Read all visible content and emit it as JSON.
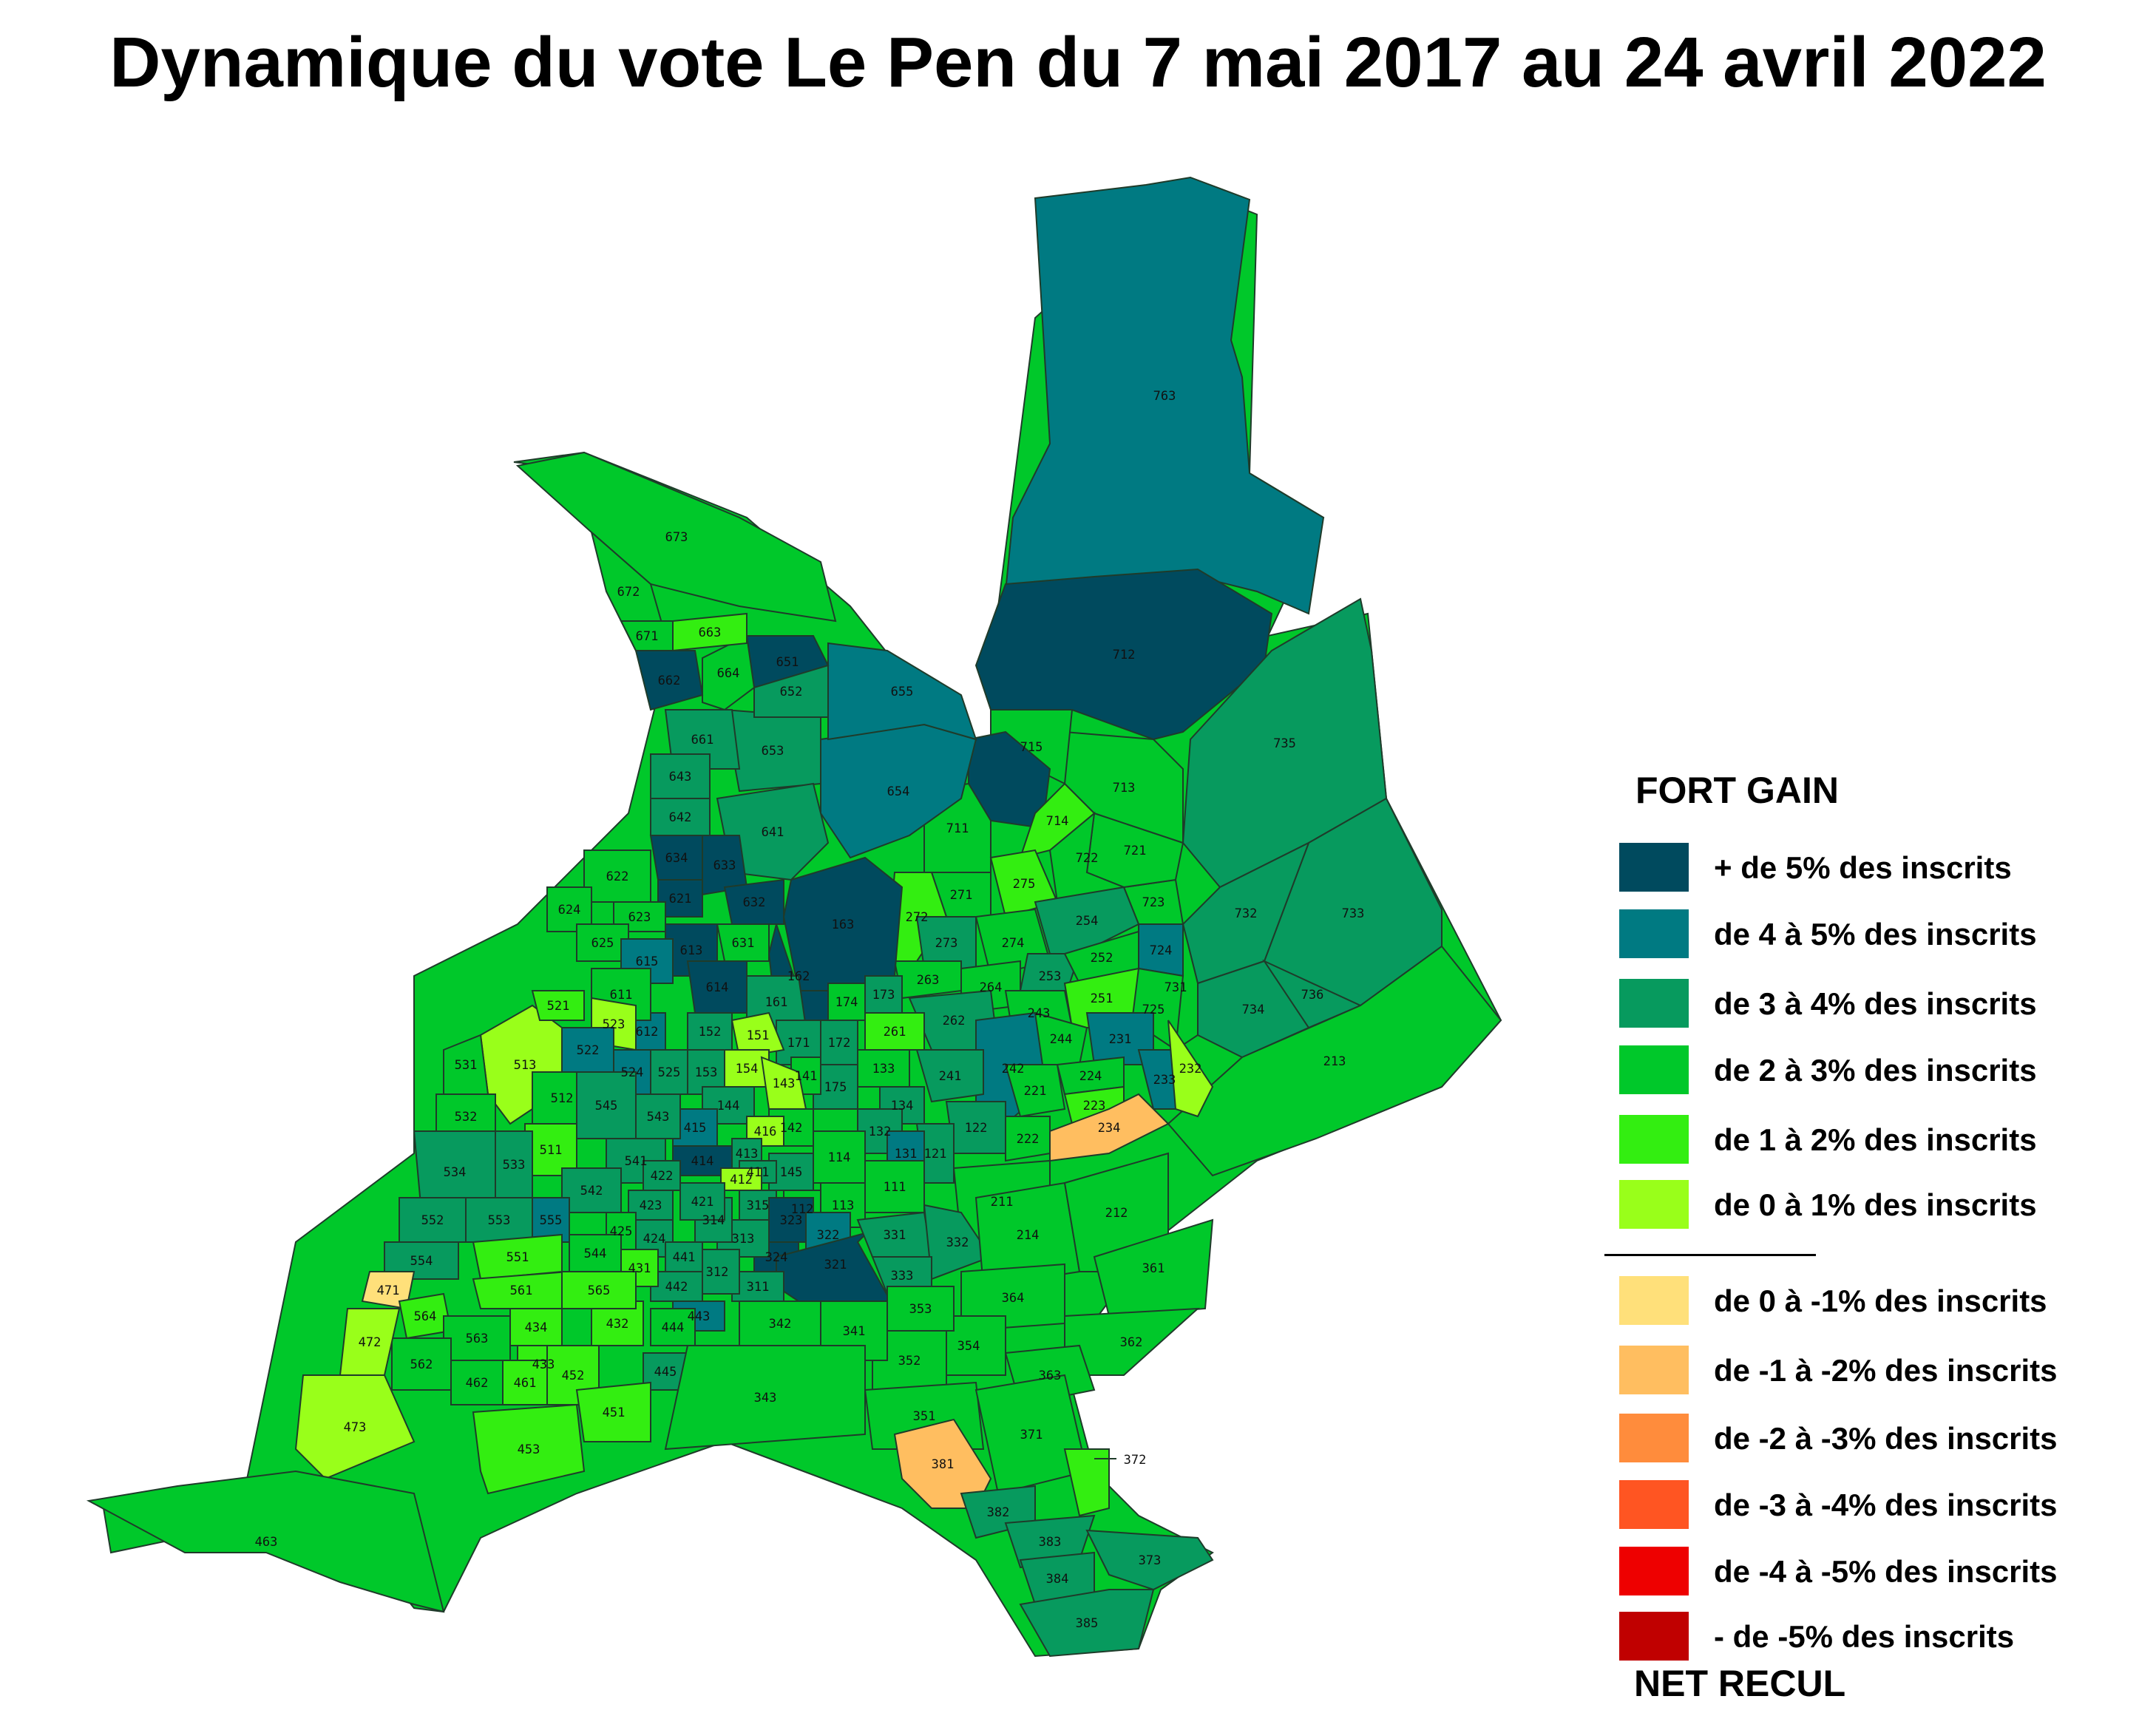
{
  "title": "Dynamique du vote Le Pen du 7 mai 2017 au 24 avril 2022",
  "colors": {
    "plus5": "#004a5e",
    "4to5": "#007a82",
    "3to4": "#079a5e",
    "2to3": "#00c82a",
    "1to2": "#33ee11",
    "0to1": "#99ff1a",
    "m0to1": "#ffe07a",
    "m1to2": "#ffbe60",
    "m2to3": "#ff8c3c",
    "m3to4": "#ff5522",
    "m4to5": "#ee0000",
    "mplus5": "#c00000"
  },
  "legend": {
    "gain_heading": "FORT GAIN",
    "loss_heading": "NET RECUL",
    "items": [
      {
        "label": "+ de 5% des inscrits",
        "color": "#004a5e"
      },
      {
        "label": "de 4 à 5% des inscrits",
        "color": "#007a82"
      },
      {
        "label": "de 3 à 4% des inscrits",
        "color": "#079a5e"
      },
      {
        "label": "de 2 à 3% des inscrits",
        "color": "#00c82a"
      },
      {
        "label": "de 1 à 2% des inscrits",
        "color": "#33ee11"
      },
      {
        "label": "de 0 à 1% des inscrits",
        "color": "#99ff1a"
      },
      {
        "label": "de 0 à -1% des inscrits",
        "color": "#ffe07a"
      },
      {
        "label": "de -1 à -2% des inscrits",
        "color": "#ffbe60"
      },
      {
        "label": "de -2 à -3% des inscrits",
        "color": "#ff8c3c"
      },
      {
        "label": "de -3 à -4% des inscrits",
        "color": "#ff5522"
      },
      {
        "label": "de -4 à -5% des inscrits",
        "color": "#ee0000"
      },
      {
        "label": "- de -5% des inscrits",
        "color": "#c00000"
      }
    ]
  },
  "sectors": {
    "763": "4to5",
    "715": "2to3",
    "712": "plus5",
    "713": "2to3",
    "714": "1to2",
    "711": "2to3",
    "721": "2to3",
    "722": "2to3",
    "723": "2to3",
    "724": "4to5",
    "725": "2to3",
    "731": "2to3",
    "732": "3to4",
    "733": "3to4",
    "734": "3to4",
    "735": "3to4",
    "736": "3to4",
    "213": "2to3",
    "211": "2to3",
    "212": "2to3",
    "214": "2to3",
    "232": "0to1",
    "233": "4to5",
    "231": "4to5",
    "234": "m1to2",
    "223": "1to2",
    "224": "2to3",
    "221": "2to3",
    "222": "2to3",
    "242": "4to5",
    "241": "3to4",
    "243": "2to3",
    "244": "2to3",
    "251": "1to2",
    "252": "2to3",
    "253": "3to4",
    "254": "3to4",
    "261": "1to2",
    "262": "3to4",
    "263": "2to3",
    "264": "2to3",
    "271": "2to3",
    "272": "1to2",
    "273": "3to4",
    "274": "2to3",
    "275": "1to2",
    "361": "2to3",
    "362": "2to3",
    "363": "2to3",
    "364": "2to3",
    "371": "2to3",
    "372": "1to2",
    "373": "3to4",
    "381": "m1to2",
    "382": "3to4",
    "383": "3to4",
    "384": "3to4",
    "385": "3to4",
    "351": "2to3",
    "352": "2to3",
    "353": "2to3",
    "354": "2to3",
    "341": "2to3",
    "342": "2to3",
    "343": "2to3",
    "331": "3to4",
    "332": "3to4",
    "333": "3to4",
    "321": "plus5",
    "322": "4to5",
    "323": "plus5",
    "324": "plus5",
    "311": "3to4",
    "312": "3to4",
    "313": "3to4",
    "314": "3to4",
    "315": "3to4",
    "111": "2to3",
    "113": "2to3",
    "114": "2to3",
    "112": "2to3",
    "121": "3to4",
    "122": "3to4",
    "131": "4to5",
    "132": "3to4",
    "133": "2to3",
    "134": "3to4",
    "141": "2to3",
    "142": "2to3",
    "143": "0to1",
    "144": "3to4",
    "145": "3to4",
    "151": "0to1",
    "152": "3to4",
    "153": "3to4",
    "154": "0to1",
    "161": "3to4",
    "162": "plus5",
    "163": "plus5",
    "171": "3to4",
    "172": "3to4",
    "173": "3to4",
    "174": "2to3",
    "175": "3to4",
    "411": "3to4",
    "412": "0to1",
    "413": "3to4",
    "414": "plus5",
    "415": "4to5",
    "416": "0to1",
    "421": "3to4",
    "422": "3to4",
    "423": "3to4",
    "424": "3to4",
    "425": "2to3",
    "431": "1to2",
    "432": "1to2",
    "433": "1to2",
    "434": "1to2",
    "441": "3to4",
    "442": "3to4",
    "443": "4to5",
    "444": "2to3",
    "445": "3to4",
    "451": "1to2",
    "452": "1to2",
    "453": "1to2",
    "461": "1to2",
    "462": "2to3",
    "463": "2to3",
    "471": "m0to1",
    "472": "0to1",
    "473": "0to1",
    "511": "1to2",
    "512": "2to3",
    "513": "0to1",
    "521": "1to2",
    "522": "4to5",
    "523": "0to1",
    "524": "4to5",
    "525": "3to4",
    "531": "2to3",
    "532": "2to3",
    "533": "3to4",
    "534": "3to4",
    "541": "3to4",
    "542": "3to4",
    "543": "3to4",
    "544": "2to3",
    "545": "3to4",
    "551": "1to2",
    "552": "3to4",
    "553": "3to4",
    "554": "3to4",
    "555": "4to5",
    "561": "1to2",
    "562": "2to3",
    "563": "2to3",
    "564": "1to2",
    "565": "1to2",
    "611": "2to3",
    "612": "4to5",
    "613": "plus5",
    "614": "plus5",
    "615": "4to5",
    "621": "plus5",
    "622": "2to3",
    "623": "2to3",
    "624": "2to3",
    "625": "2to3",
    "631": "2to3",
    "632": "plus5",
    "633": "plus5",
    "634": "plus5",
    "641": "3to4",
    "642": "3to4",
    "643": "3to4",
    "651": "plus5",
    "652": "3to4",
    "653": "3to4",
    "654": "4to5",
    "655": "4to5",
    "661": "3to4",
    "662": "plus5",
    "663": "1to2",
    "664": "2to3",
    "671": "2to3",
    "672": "2to3",
    "673": "2to3"
  }
}
